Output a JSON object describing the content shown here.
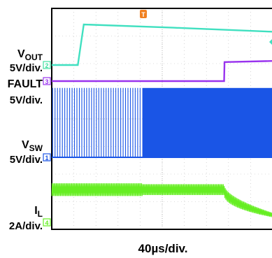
{
  "chart_data": {
    "type": "line",
    "title": "",
    "xlabel": "40µs/div.",
    "ylabel": "",
    "x_divisions": 10,
    "y_divisions": 8,
    "grid": true,
    "trigger": {
      "marker": "T",
      "color": "#f08020"
    },
    "channels": [
      {
        "id": "2",
        "name_main": "V",
        "name_sub": "OUT",
        "scale": "5V/div.",
        "color": "#40e0c0",
        "marker_color": "#40e0a0",
        "points": [
          [
            0,
            0
          ],
          [
            1.18,
            0
          ],
          [
            1.45,
            1.0
          ],
          [
            5.5,
            0.92
          ],
          [
            10,
            0.82
          ]
        ]
      },
      {
        "id": "3",
        "name_main": "FAULT",
        "name_sub": "",
        "scale": "5V/div.",
        "color": "#9933ee",
        "marker_color": "#9933ee",
        "points": [
          [
            0,
            0
          ],
          [
            7.8,
            0
          ],
          [
            7.82,
            0.68
          ],
          [
            10,
            0.72
          ]
        ]
      },
      {
        "id": "1",
        "name_main": "V",
        "name_sub": "SW",
        "scale": "5V/div.",
        "color": "#1a55e6",
        "marker_color": "#1a55e6",
        "pulses": {
          "low": 0,
          "high": 1.6,
          "sparse_end": 4.1,
          "sparse_period": 0.11,
          "dense_period": 0.03
        }
      },
      {
        "id": "4",
        "name_main": "I",
        "name_sub": "L",
        "scale": "2A/div.",
        "color": "#66ee22",
        "marker_color": "#66ee22",
        "ripple": {
          "level_before": 0.9,
          "amplitude_before": 0.35,
          "level_after": 0.9,
          "amplitude_after": 0.3,
          "change_at": 4.1,
          "decay_start": 7.8,
          "level_end": 0.2
        }
      }
    ]
  }
}
